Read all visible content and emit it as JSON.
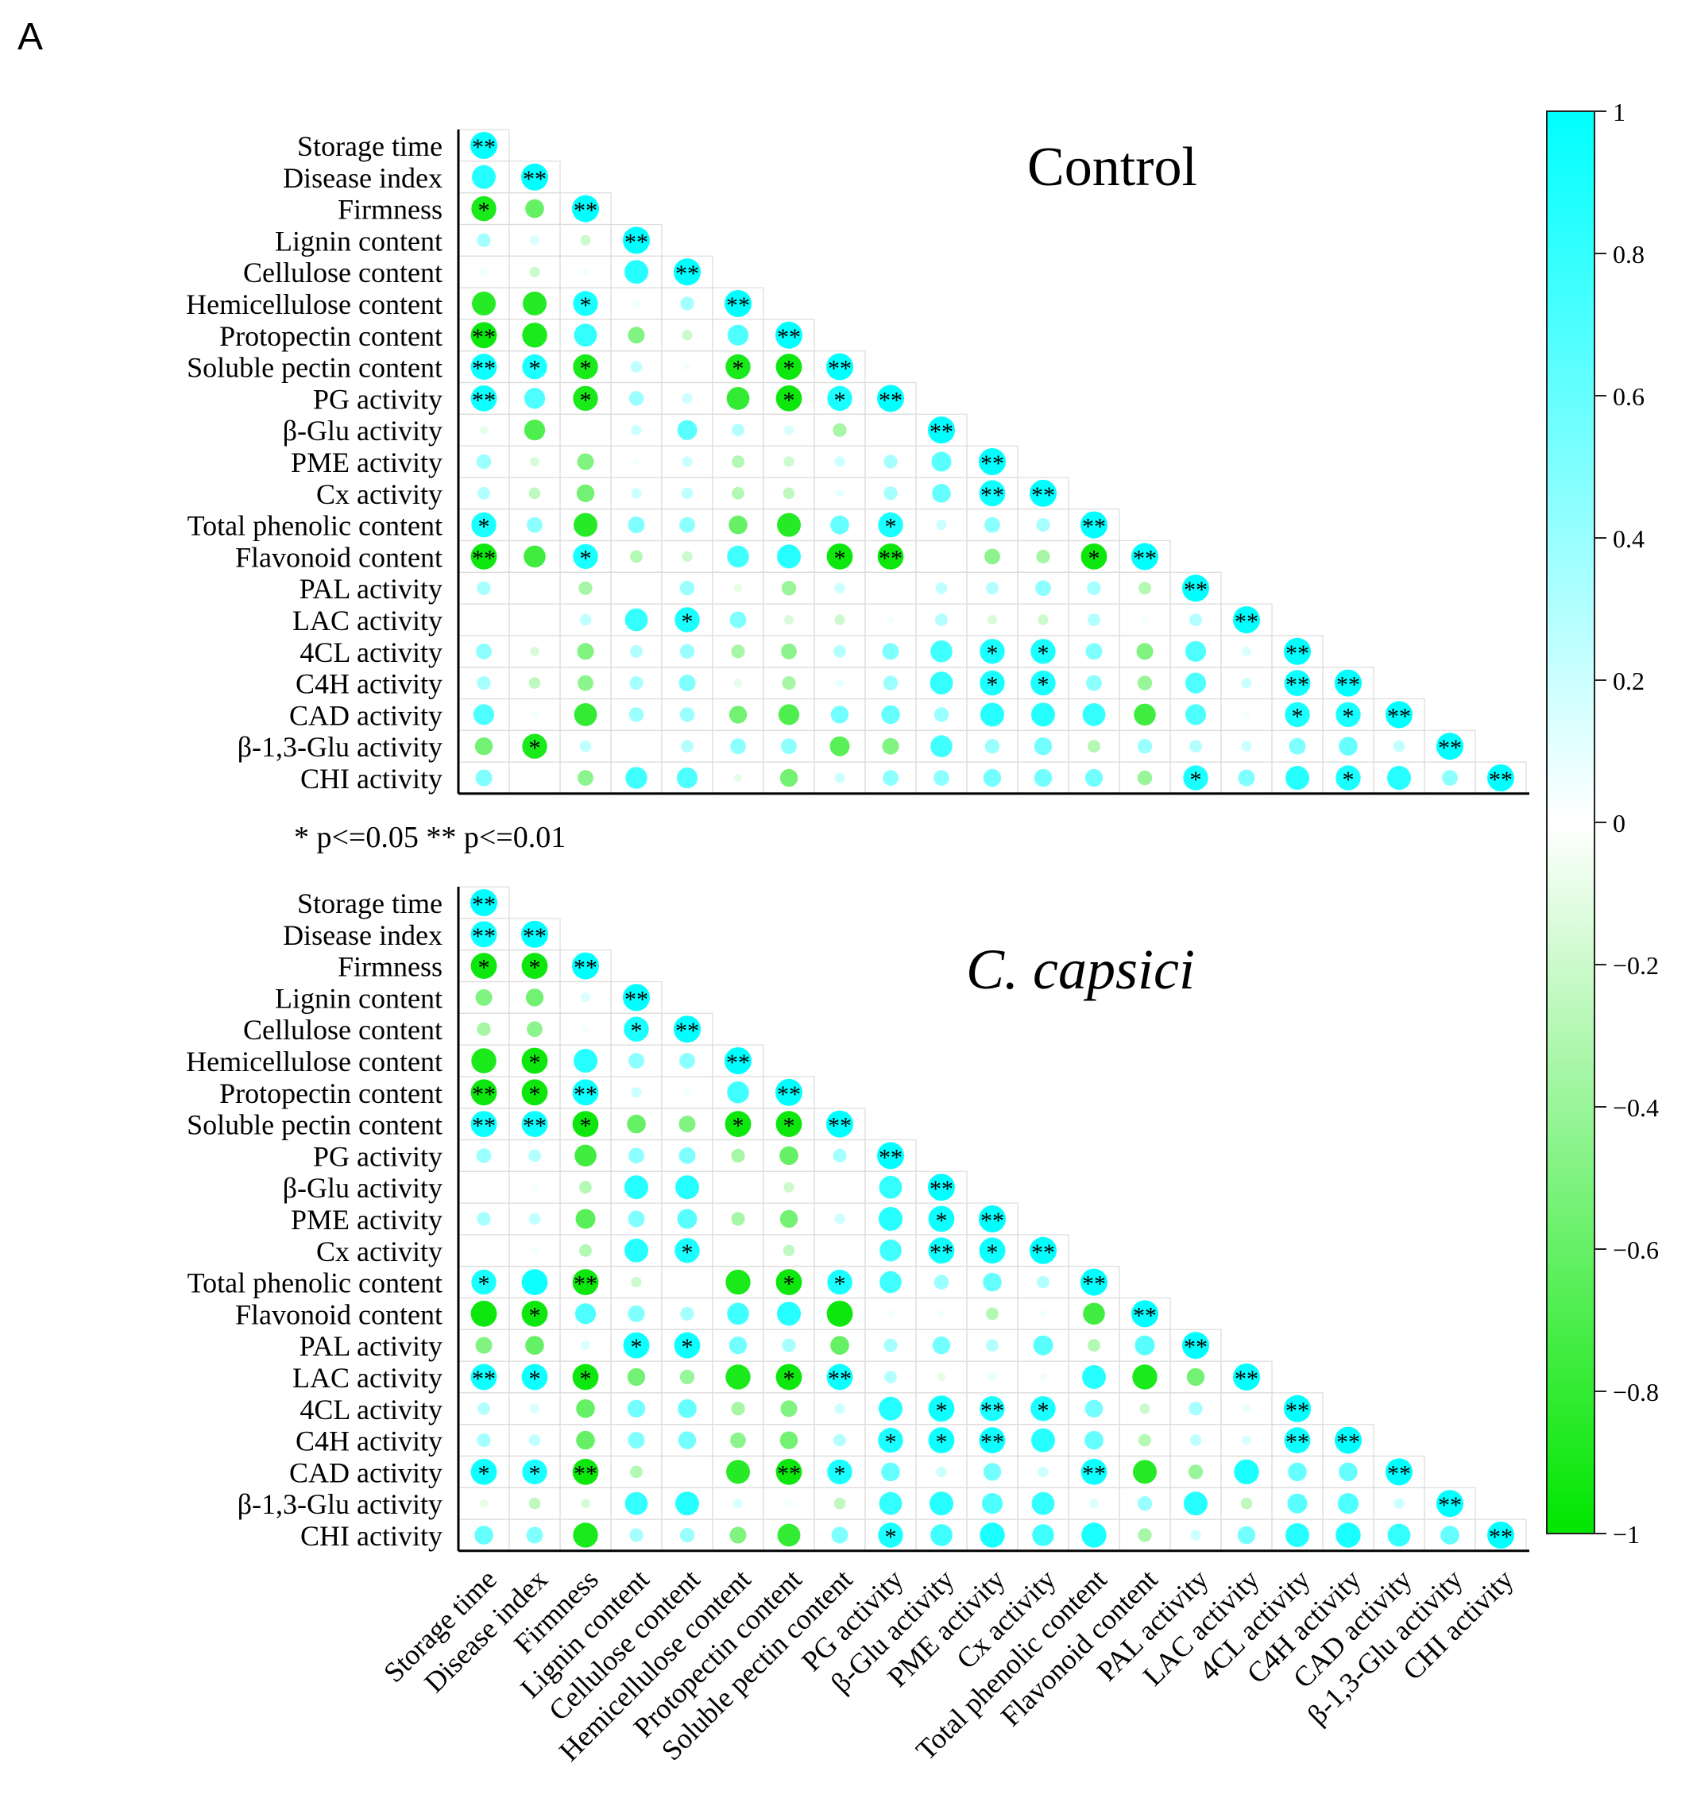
{
  "panel_label": "A",
  "significance_note": "* p<=0.05  ** p<=0.01",
  "chart_data": {
    "type": "heatmap",
    "subtype": "lower-triangle correlation matrix with sized, colored circles",
    "variables": [
      "Storage time",
      "Disease index",
      "Firmness",
      "Lignin content",
      "Cellulose content",
      "Hemicellulose content",
      "Protopectin content",
      "Soluble pectin content",
      "PG activity",
      "β-Glu activity",
      "PME activity",
      "Cx activity",
      "Total phenolic content",
      "Flavonoid content",
      "PAL activity",
      "LAC activity",
      "4CL activity",
      "C4H activity",
      "CAD activity",
      "β-1,3-Glu activity",
      "CHI activity"
    ],
    "colorbar": {
      "min": -1,
      "max": 1,
      "ticks": [
        1,
        0.8,
        0.6,
        0.4,
        0.2,
        0,
        -0.2,
        -0.4,
        -0.6,
        -0.8,
        -1
      ],
      "tick_labels": [
        "1",
        "0.8",
        "0.6",
        "0.4",
        "0.2",
        "0",
        "−0.2",
        "−0.4",
        "−0.6",
        "−0.8",
        "−1"
      ],
      "colors": {
        "positive": "#00ffff",
        "zero": "#ffffff",
        "negative": "#00e600"
      }
    },
    "panels": [
      {
        "title": "Control",
        "title_italic": false,
        "lower_triangle": [
          [
            "**"
          ],
          [
            0.85,
            "**"
          ],
          [
            -0.9,
            -0.6,
            "**"
          ],
          [
            0.35,
            0.15,
            -0.2,
            "**"
          ],
          [
            0.05,
            -0.2,
            0.05,
            0.85,
            "**"
          ],
          [
            -0.85,
            -0.85,
            0.9,
            0.05,
            0.35,
            "**"
          ],
          [
            -0.95,
            -0.9,
            0.8,
            -0.5,
            -0.2,
            0.7,
            "**"
          ],
          [
            0.95,
            0.9,
            -0.9,
            0.25,
            0.05,
            -0.9,
            -0.95,
            "**"
          ],
          [
            0.95,
            0.7,
            -0.9,
            0.4,
            0.2,
            -0.8,
            -0.95,
            0.9,
            "**"
          ],
          [
            -0.1,
            -0.7,
            0.0,
            0.2,
            0.65,
            0.3,
            0.15,
            -0.35,
            0.0,
            "**"
          ],
          [
            0.4,
            -0.15,
            -0.5,
            0.05,
            0.2,
            -0.3,
            -0.2,
            0.2,
            0.35,
            0.65,
            "**"
          ],
          [
            0.3,
            -0.25,
            -0.55,
            0.2,
            0.25,
            -0.3,
            -0.25,
            0.1,
            0.35,
            0.6,
            0.95,
            "**"
          ],
          [
            0.9,
            0.45,
            -0.85,
            0.5,
            0.45,
            -0.6,
            -0.85,
            0.6,
            0.9,
            0.2,
            0.45,
            0.35,
            "**"
          ],
          [
            -0.95,
            -0.75,
            0.9,
            -0.3,
            -0.2,
            0.75,
            0.85,
            -0.95,
            -0.95,
            0.0,
            -0.45,
            -0.35,
            -0.95,
            "**"
          ],
          [
            0.35,
            0.0,
            -0.35,
            0.0,
            0.4,
            -0.1,
            -0.4,
            0.2,
            0.0,
            0.25,
            0.3,
            0.45,
            0.35,
            -0.3,
            "**"
          ],
          [
            0.0,
            0.0,
            0.25,
            0.8,
            0.9,
            0.5,
            -0.15,
            -0.2,
            0.05,
            0.3,
            -0.15,
            -0.2,
            0.3,
            0.05,
            0.3,
            "**"
          ],
          [
            0.45,
            -0.15,
            -0.5,
            0.3,
            0.4,
            -0.35,
            -0.45,
            0.3,
            0.5,
            0.75,
            0.9,
            0.9,
            0.5,
            -0.5,
            0.7,
            0.15,
            "**"
          ],
          [
            0.35,
            -0.25,
            -0.45,
            0.35,
            0.5,
            -0.1,
            -0.35,
            0.1,
            0.4,
            0.8,
            0.9,
            0.9,
            0.45,
            -0.4,
            0.7,
            0.2,
            0.95,
            "**"
          ],
          [
            0.7,
            0.05,
            -0.8,
            0.4,
            0.4,
            -0.55,
            -0.7,
            0.55,
            0.6,
            0.4,
            0.85,
            0.85,
            0.8,
            -0.75,
            0.7,
            0.05,
            0.9,
            0.9,
            "**"
          ],
          [
            -0.55,
            -0.9,
            0.25,
            0.0,
            0.3,
            0.45,
            0.45,
            -0.65,
            -0.5,
            0.75,
            0.4,
            0.55,
            -0.3,
            0.4,
            0.3,
            0.2,
            0.5,
            0.6,
            0.25,
            "**"
          ],
          [
            0.5,
            0.0,
            -0.45,
            0.75,
            0.7,
            -0.1,
            -0.55,
            0.2,
            0.45,
            0.45,
            0.55,
            0.55,
            0.55,
            -0.4,
            0.9,
            0.5,
            0.85,
            0.9,
            0.85,
            0.45,
            "**"
          ]
        ],
        "significance": [
          [
            "**"
          ],
          [
            "",
            "**"
          ],
          [
            "*",
            "",
            "**"
          ],
          [
            "",
            "",
            "",
            "**"
          ],
          [
            "",
            "",
            "",
            "",
            "**"
          ],
          [
            "",
            "",
            "*",
            "",
            "",
            "**"
          ],
          [
            "**",
            "",
            "",
            "",
            "",
            "",
            "**"
          ],
          [
            "**",
            "*",
            "*",
            "",
            "",
            "*",
            "*",
            "**"
          ],
          [
            "**",
            "",
            "*",
            "",
            "",
            "",
            "*",
            "*",
            "**"
          ],
          [
            "",
            "",
            "",
            "",
            "",
            "",
            "",
            "",
            "",
            "**"
          ],
          [
            "",
            "",
            "",
            "",
            "",
            "",
            "",
            "",
            "",
            "",
            "**"
          ],
          [
            "",
            "",
            "",
            "",
            "",
            "",
            "",
            "",
            "",
            "",
            "**",
            "**"
          ],
          [
            "*",
            "",
            "",
            "",
            "",
            "",
            "",
            "",
            "*",
            "",
            "",
            "",
            "**"
          ],
          [
            "**",
            "",
            "*",
            "",
            "",
            "",
            "",
            "*",
            "**",
            "",
            "",
            "",
            "*",
            "**"
          ],
          [
            "",
            "",
            "",
            "",
            "",
            "",
            "",
            "",
            "",
            "",
            "",
            "",
            "",
            "",
            "**"
          ],
          [
            "",
            "",
            "",
            "",
            "*",
            "",
            "",
            "",
            "",
            "",
            "",
            "",
            "",
            "",
            "",
            "**"
          ],
          [
            "",
            "",
            "",
            "",
            "",
            "",
            "",
            "",
            "",
            "",
            "*",
            "*",
            "",
            "",
            "",
            "",
            "**"
          ],
          [
            "",
            "",
            "",
            "",
            "",
            "",
            "",
            "",
            "",
            "",
            "*",
            "*",
            "",
            "",
            "",
            "",
            "**",
            "**"
          ],
          [
            "",
            "",
            "",
            "",
            "",
            "",
            "",
            "",
            "",
            "",
            "",
            "",
            "",
            "",
            "",
            "",
            "*",
            "*",
            "**"
          ],
          [
            "",
            "*",
            "",
            "",
            "",
            "",
            "",
            "",
            "",
            "",
            "",
            "",
            "",
            "",
            "",
            "",
            "",
            "",
            "",
            "**"
          ],
          [
            "",
            "",
            "",
            "",
            "",
            "",
            "",
            "",
            "",
            "",
            "",
            "",
            "",
            "",
            "*",
            "",
            "",
            "*",
            "",
            "",
            "**"
          ]
        ]
      },
      {
        "title": "C. capsici",
        "title_italic": true,
        "lower_triangle": [
          [
            "**"
          ],
          [
            0.95,
            "**"
          ],
          [
            -0.95,
            -0.95,
            "**"
          ],
          [
            -0.5,
            -0.55,
            0.15,
            "**"
          ],
          [
            -0.35,
            -0.45,
            0.05,
            0.9,
            "**"
          ],
          [
            -0.9,
            -0.95,
            0.85,
            0.45,
            0.45,
            "**"
          ],
          [
            -0.95,
            -0.95,
            0.95,
            0.2,
            0.05,
            0.75,
            "**"
          ],
          [
            0.95,
            0.95,
            -0.95,
            -0.6,
            -0.5,
            -0.95,
            -0.95,
            "**"
          ],
          [
            0.4,
            0.3,
            -0.75,
            0.45,
            0.5,
            -0.35,
            -0.6,
            0.35,
            "**"
          ],
          [
            0.0,
            0.05,
            -0.3,
            0.85,
            0.85,
            0.0,
            -0.2,
            0.0,
            0.8,
            "**"
          ],
          [
            0.35,
            0.25,
            -0.65,
            0.5,
            0.65,
            -0.35,
            -0.55,
            0.2,
            0.85,
            0.95,
            "**"
          ],
          [
            0.0,
            0.05,
            -0.3,
            0.85,
            0.9,
            0.0,
            -0.25,
            0.0,
            0.75,
            0.95,
            0.95,
            "**"
          ],
          [
            0.9,
            0.95,
            -0.95,
            -0.2,
            0.0,
            -0.9,
            -0.95,
            0.9,
            0.75,
            0.4,
            0.6,
            0.3,
            "**"
          ],
          [
            -0.95,
            -0.95,
            0.7,
            0.5,
            0.35,
            0.75,
            0.85,
            -0.95,
            0.05,
            0.05,
            -0.3,
            0.05,
            -0.75,
            "**"
          ],
          [
            -0.5,
            -0.6,
            0.15,
            0.95,
            0.95,
            0.55,
            0.35,
            -0.6,
            0.35,
            0.55,
            0.3,
            0.65,
            -0.3,
            0.65,
            "**"
          ],
          [
            0.95,
            0.95,
            -0.95,
            -0.55,
            -0.4,
            -0.9,
            -0.95,
            0.95,
            0.3,
            -0.1,
            0.1,
            -0.05,
            0.85,
            -0.9,
            -0.55,
            "**"
          ],
          [
            0.3,
            0.15,
            -0.6,
            0.55,
            0.6,
            -0.35,
            -0.5,
            0.2,
            0.85,
            0.95,
            0.9,
            0.9,
            0.55,
            -0.2,
            0.35,
            0.1,
            "**"
          ],
          [
            0.35,
            0.25,
            -0.6,
            0.5,
            0.55,
            -0.45,
            -0.55,
            0.3,
            0.9,
            0.95,
            0.95,
            0.85,
            0.6,
            -0.3,
            0.25,
            0.15,
            0.95,
            "**"
          ],
          [
            0.95,
            0.9,
            -0.95,
            -0.3,
            0.0,
            -0.85,
            -0.95,
            0.9,
            0.6,
            0.2,
            0.55,
            0.2,
            0.95,
            -0.85,
            -0.4,
            0.9,
            0.6,
            0.6,
            "**"
          ],
          [
            -0.1,
            -0.25,
            -0.15,
            0.8,
            0.85,
            0.15,
            0.05,
            -0.25,
            0.8,
            0.85,
            0.7,
            0.8,
            0.15,
            0.4,
            0.85,
            -0.25,
            0.65,
            0.7,
            0.2,
            "**"
          ],
          [
            0.6,
            0.5,
            -0.9,
            0.35,
            0.4,
            -0.5,
            -0.8,
            0.5,
            0.9,
            0.75,
            0.9,
            0.75,
            0.9,
            -0.35,
            0.2,
            0.55,
            0.85,
            0.9,
            0.8,
            0.6,
            "**"
          ]
        ],
        "significance": [
          [
            "**"
          ],
          [
            "**",
            "**"
          ],
          [
            "*",
            "*",
            "**"
          ],
          [
            "",
            "",
            "",
            "**"
          ],
          [
            "",
            "",
            "",
            "*",
            "**"
          ],
          [
            "",
            "*",
            "",
            "",
            "",
            "**"
          ],
          [
            "**",
            "*",
            "**",
            "",
            "",
            "",
            "**"
          ],
          [
            "**",
            "**",
            "*",
            "",
            "",
            "*",
            "*",
            "**"
          ],
          [
            "",
            "",
            "",
            "",
            "",
            "",
            "",
            "",
            "**"
          ],
          [
            "",
            "",
            "",
            "",
            "",
            "",
            "",
            "",
            "",
            "**"
          ],
          [
            "",
            "",
            "",
            "",
            "",
            "",
            "",
            "",
            "",
            "*",
            "**"
          ],
          [
            "",
            "",
            "",
            "",
            "*",
            "",
            "",
            "",
            "",
            "**",
            "*",
            "**"
          ],
          [
            "*",
            "",
            "**",
            "",
            "",
            "",
            "*",
            "*",
            "",
            "",
            "",
            "",
            "**"
          ],
          [
            "",
            "*",
            "",
            "",
            "",
            "",
            "",
            "",
            "",
            "",
            "",
            "",
            "",
            "**"
          ],
          [
            "",
            "",
            "",
            "*",
            "*",
            "",
            "",
            "",
            "",
            "",
            "",
            "",
            "",
            "",
            "**"
          ],
          [
            "**",
            "*",
            "*",
            "",
            "",
            "",
            "*",
            "**",
            "",
            "",
            "",
            "",
            "",
            "",
            "",
            "**"
          ],
          [
            "",
            "",
            "",
            "",
            "",
            "",
            "",
            "",
            "",
            "*",
            "**",
            "*",
            "",
            "",
            "",
            "",
            "**"
          ],
          [
            "",
            "",
            "",
            "",
            "",
            "",
            "",
            "",
            "*",
            "*",
            "**",
            "",
            "",
            "",
            "",
            "",
            "**",
            "**"
          ],
          [
            "*",
            "*",
            "**",
            "",
            "",
            "",
            "**",
            "*",
            "",
            "",
            "",
            "",
            "**",
            "",
            "",
            "",
            "",
            "",
            "**"
          ],
          [
            "",
            "",
            "",
            "",
            "",
            "",
            "",
            "",
            "",
            "",
            "",
            "",
            "",
            "",
            "",
            "",
            "",
            "",
            "",
            "**"
          ],
          [
            "",
            "",
            "",
            "",
            "",
            "",
            "",
            "",
            "*",
            "",
            "",
            "",
            "",
            "",
            "",
            "",
            "",
            "",
            "",
            "",
            "**"
          ]
        ]
      }
    ]
  }
}
